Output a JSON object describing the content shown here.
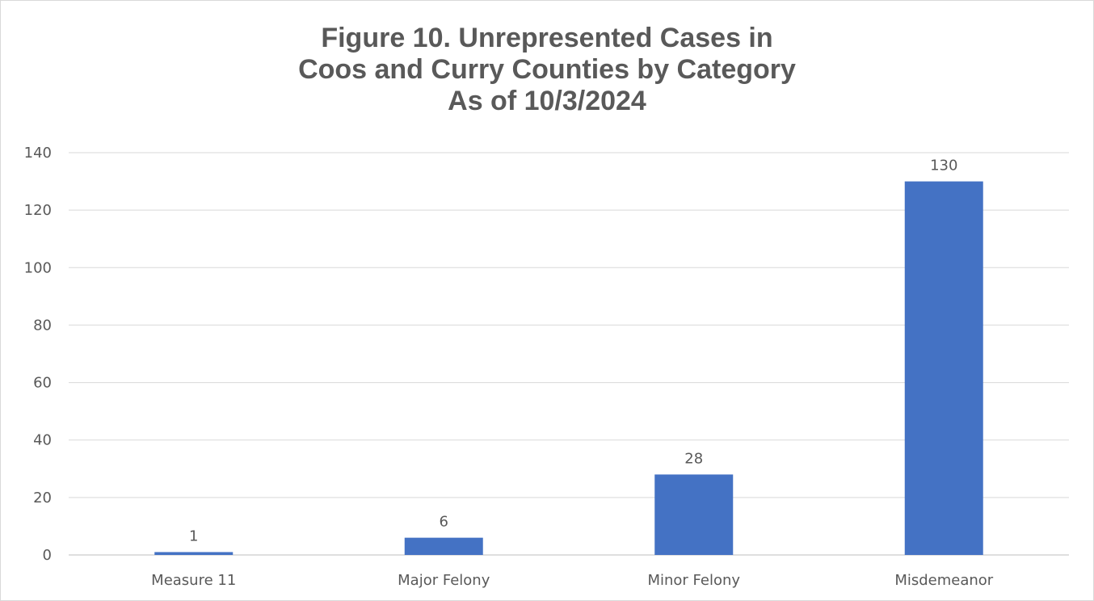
{
  "chart_data": {
    "type": "bar",
    "title_lines": [
      "Figure 10. Unrepresented Cases in",
      "Coos and Curry Counties by Category",
      "As of 10/3/2024"
    ],
    "categories": [
      "Measure 11",
      "Major Felony",
      "Minor Felony",
      "Misdemeanor"
    ],
    "values": [
      1,
      6,
      28,
      130
    ],
    "data_labels": [
      "1",
      "6",
      "28",
      "130"
    ],
    "ylim": [
      0,
      140
    ],
    "yticks": [
      "0",
      "20",
      "40",
      "60",
      "80",
      "100",
      "120",
      "140"
    ],
    "xlabel": "",
    "ylabel": "",
    "grid": true,
    "legend": "none",
    "colors": {
      "bar": "#4472c4",
      "gridline": "#d9d9d9",
      "axis": "#bfbfbf",
      "text": "#595959"
    }
  }
}
